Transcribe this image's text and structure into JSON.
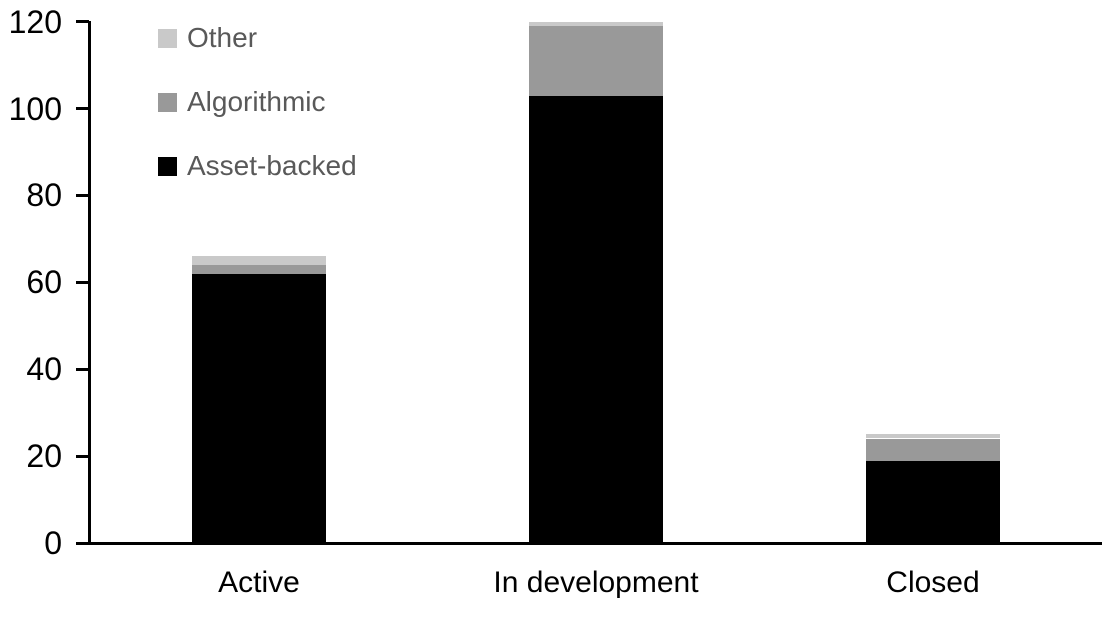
{
  "chart_data": {
    "type": "bar",
    "stacked": true,
    "title": "",
    "xlabel": "",
    "ylabel": "",
    "categories": [
      "Active",
      "In development",
      "Closed"
    ],
    "series": [
      {
        "name": "Asset-backed",
        "color": "#000000",
        "values": [
          62,
          103,
          19
        ]
      },
      {
        "name": "Algorithmic",
        "color": "#999999",
        "values": [
          2,
          16,
          5
        ]
      },
      {
        "name": "Other",
        "color": "#c9c9c9",
        "values": [
          2,
          1,
          1
        ]
      }
    ],
    "totals": [
      66,
      120,
      25
    ],
    "ylim": [
      0,
      120
    ],
    "yticks": [
      0,
      20,
      40,
      60,
      80,
      100,
      120
    ],
    "grid": false,
    "legend": {
      "position": "top-left",
      "order_top_to_bottom": [
        "Other",
        "Algorithmic",
        "Asset-backed"
      ],
      "text_color": "#595959"
    },
    "axis_color": "#000000"
  }
}
